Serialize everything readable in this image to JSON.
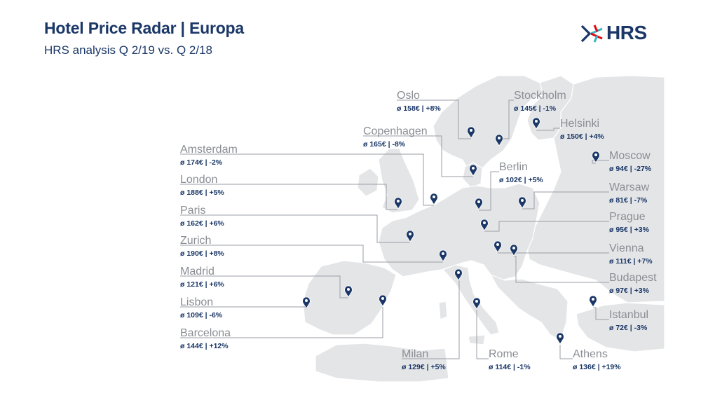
{
  "header": {
    "title": "Hotel Price Radar | Europa",
    "subtitle": "HRS analysis Q 2/19 vs. Q 2/18",
    "logo_text": "HRS"
  },
  "colors": {
    "navy": "#1a3767",
    "land": "#e4e5e7",
    "label_gray": "#8a8e94",
    "logo_red": "#e20714",
    "logo_teal": "#39b3c5"
  },
  "icons": {
    "pin": "map-pin-icon",
    "logo": "hrs-logo-icon"
  },
  "cities": [
    {
      "id": "oslo",
      "name": "Oslo",
      "stat": "ø 158€ | +8%"
    },
    {
      "id": "stockholm",
      "name": "Stockholm",
      "stat": "ø 145€ | -1%"
    },
    {
      "id": "helsinki",
      "name": "Helsinki",
      "stat": "ø 150€ | +4%"
    },
    {
      "id": "copenhagen",
      "name": "Copenhagen",
      "stat": "ø 165€ | -8%"
    },
    {
      "id": "moscow",
      "name": "Moscow",
      "stat": "ø 94€ | -27%"
    },
    {
      "id": "amsterdam",
      "name": "Amsterdam",
      "stat": "ø 174€ | -2%"
    },
    {
      "id": "berlin",
      "name": "Berlin",
      "stat": "ø 102€ | +5%"
    },
    {
      "id": "london",
      "name": "London",
      "stat": "ø 188€ | +5%"
    },
    {
      "id": "warsaw",
      "name": "Warsaw",
      "stat": "ø 81€ | -7%"
    },
    {
      "id": "paris",
      "name": "Paris",
      "stat": "ø 162€ | +6%"
    },
    {
      "id": "prague",
      "name": "Prague",
      "stat": "ø 95€ | +3%"
    },
    {
      "id": "zurich",
      "name": "Zurich",
      "stat": "ø 190€ | +8%"
    },
    {
      "id": "vienna",
      "name": "Vienna",
      "stat": "ø 111€ | +7%"
    },
    {
      "id": "madrid",
      "name": "Madrid",
      "stat": "ø 121€ | +6%"
    },
    {
      "id": "budapest",
      "name": "Budapest",
      "stat": "ø 97€ | +3%"
    },
    {
      "id": "lisbon",
      "name": "Lisbon",
      "stat": "ø 109€ | -6%"
    },
    {
      "id": "istanbul",
      "name": "Istanbul",
      "stat": "ø 72€ | -3%"
    },
    {
      "id": "barcelona",
      "name": "Barcelona",
      "stat": "ø 144€ | +12%"
    },
    {
      "id": "milan",
      "name": "Milan",
      "stat": "ø 129€ | +5%"
    },
    {
      "id": "rome",
      "name": "Rome",
      "stat": "ø 114€ | -1%"
    },
    {
      "id": "athens",
      "name": "Athens",
      "stat": "ø 136€ | +19%"
    }
  ]
}
